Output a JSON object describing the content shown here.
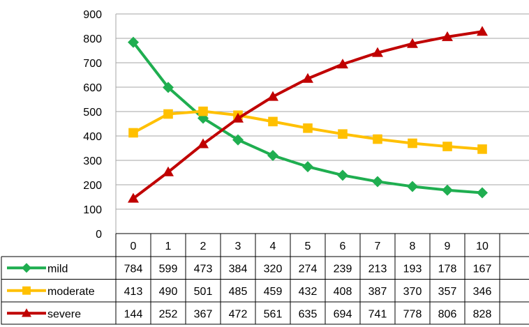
{
  "chart_data": {
    "type": "line",
    "title": "",
    "xlabel": "",
    "ylabel": "",
    "ylim": [
      0,
      900
    ],
    "yticks": [
      "0",
      "100",
      "200",
      "300",
      "400",
      "500",
      "600",
      "700",
      "800",
      "900"
    ],
    "categories": [
      "0",
      "1",
      "2",
      "3",
      "4",
      "5",
      "6",
      "7",
      "8",
      "9",
      "10"
    ],
    "grid": true,
    "legend": "data-table",
    "series": [
      {
        "name": "mild",
        "color": "#1fae50",
        "marker": "diamond",
        "values": [
          784,
          599,
          473,
          384,
          320,
          274,
          239,
          213,
          193,
          178,
          167
        ]
      },
      {
        "name": "moderate",
        "color": "#ffc000",
        "marker": "square",
        "values": [
          413,
          490,
          501,
          485,
          459,
          432,
          408,
          387,
          370,
          357,
          346
        ]
      },
      {
        "name": "severe",
        "color": "#c00000",
        "marker": "triangle",
        "values": [
          144,
          252,
          367,
          472,
          561,
          635,
          694,
          741,
          778,
          806,
          828
        ]
      }
    ]
  }
}
